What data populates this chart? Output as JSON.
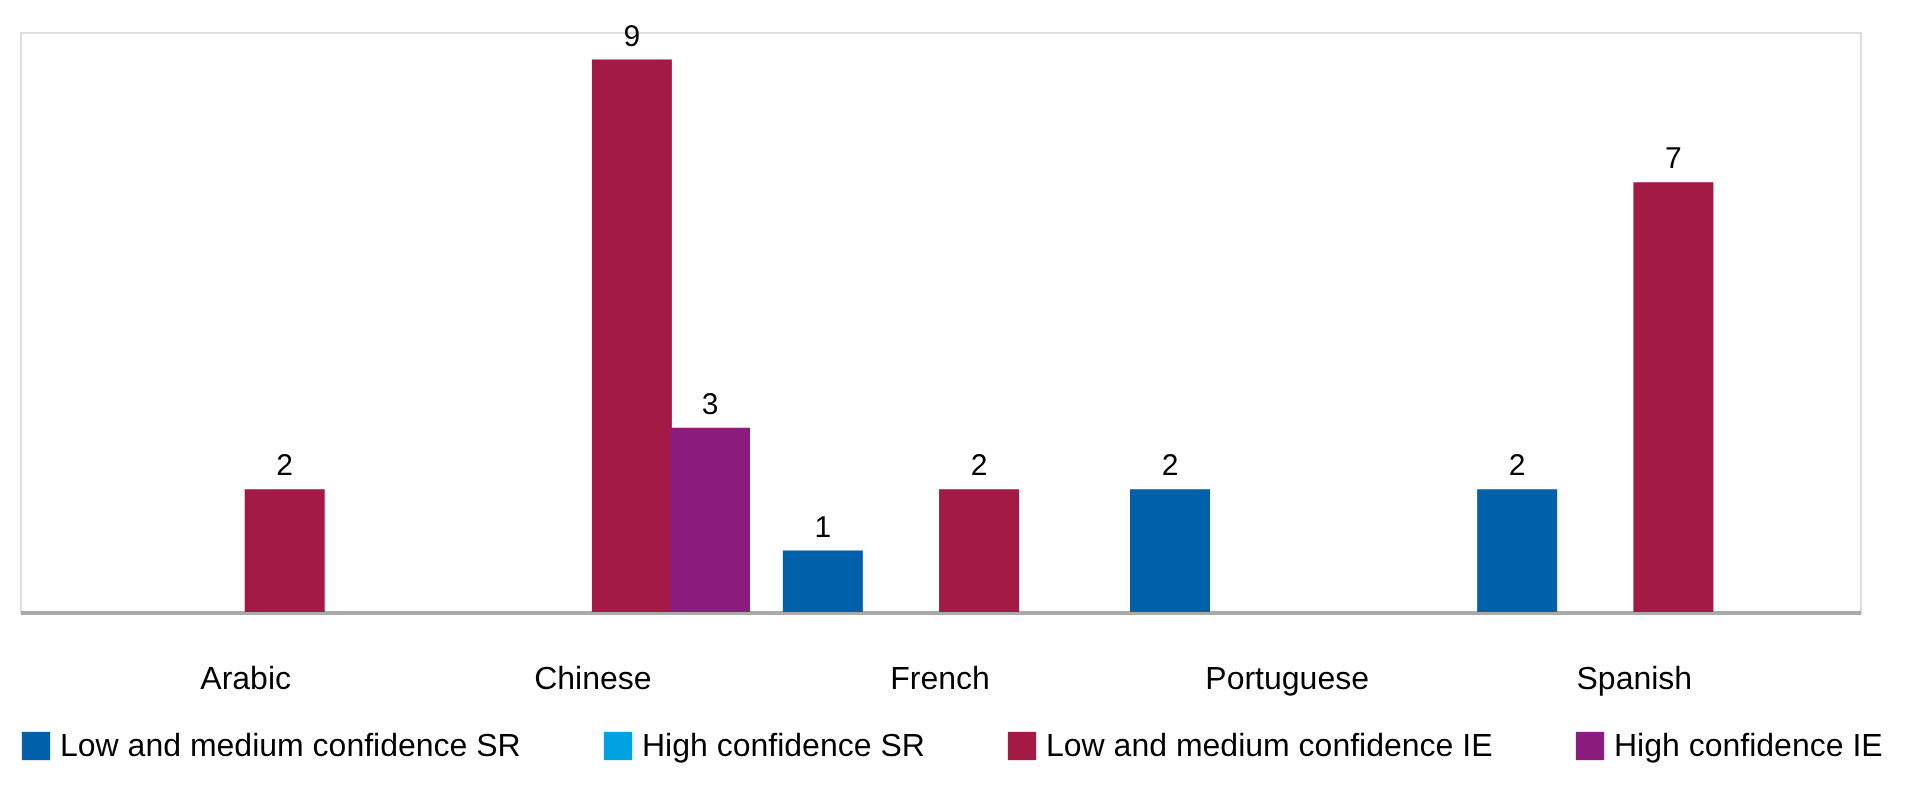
{
  "chart_data": {
    "type": "bar",
    "categories": [
      "Arabic",
      "Chinese",
      "French",
      "Portuguese",
      "Spanish"
    ],
    "series": [
      {
        "name": "Low and medium confidence SR",
        "color": "#0060a9",
        "values": [
          null,
          null,
          1,
          2,
          2
        ]
      },
      {
        "name": "High confidence SR",
        "color": "#00a3e0",
        "values": [
          null,
          null,
          null,
          null,
          null
        ]
      },
      {
        "name": "Low and medium confidence IE",
        "color": "#a31a45",
        "values": [
          2,
          9,
          2,
          null,
          7
        ]
      },
      {
        "name": "High confidence IE",
        "color": "#8b1c7e",
        "values": [
          null,
          3,
          null,
          null,
          null
        ]
      }
    ],
    "data_labels": true,
    "legend": "bottom",
    "grid": false
  }
}
